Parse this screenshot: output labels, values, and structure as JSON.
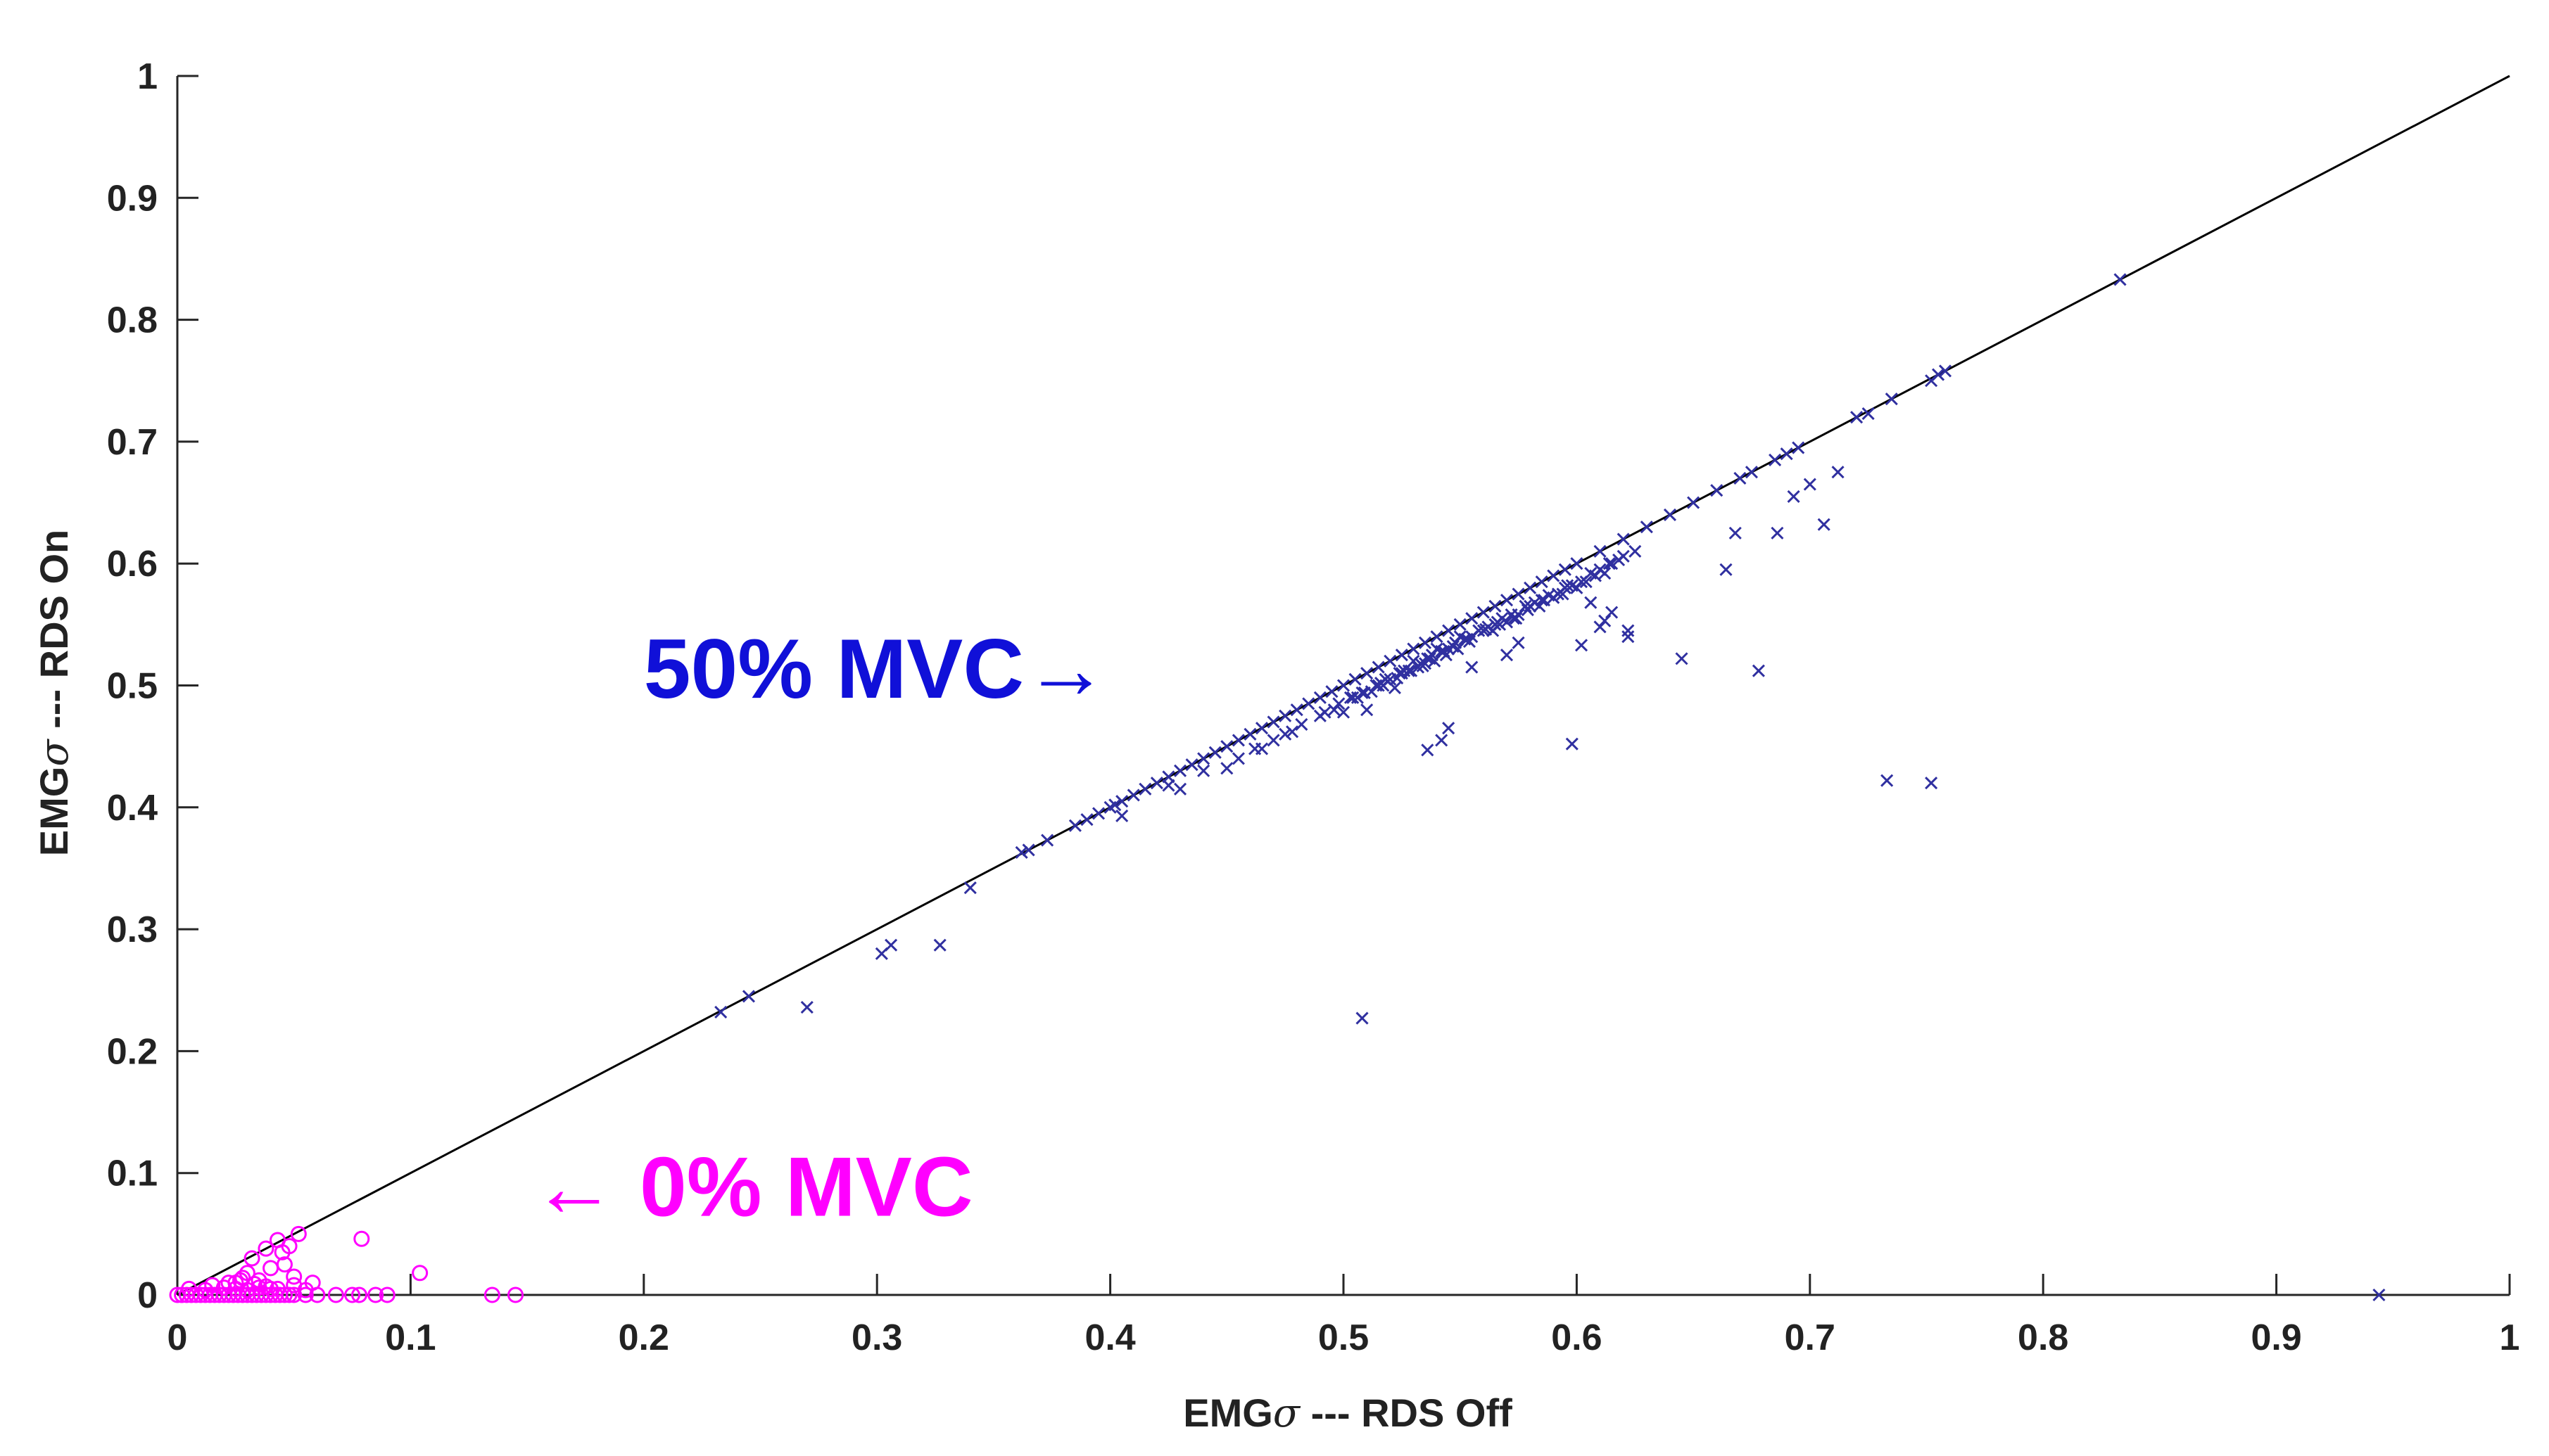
{
  "chart_data": {
    "type": "scatter",
    "title": "",
    "xlabel": {
      "prefix": "EMG",
      "symbol": "σ",
      "suffix": " --- RDS Off"
    },
    "ylabel": {
      "prefix": "EMG",
      "symbol": "σ",
      "suffix": " --- RDS On"
    },
    "xlim": [
      0,
      1
    ],
    "ylim": [
      0,
      1
    ],
    "grid": false,
    "legend": "none",
    "x_ticks": [
      0,
      0.1,
      0.2,
      0.3,
      0.4,
      0.5,
      0.6,
      0.7,
      0.8,
      0.9,
      1
    ],
    "x_tick_labels": [
      "0",
      "0.1",
      "0.2",
      "0.3",
      "0.4",
      "0.5",
      "0.6",
      "0.7",
      "0.8",
      "0.9",
      "1"
    ],
    "y_ticks": [
      0,
      0.1,
      0.2,
      0.3,
      0.4,
      0.5,
      0.6,
      0.7,
      0.8,
      0.9,
      1
    ],
    "y_tick_labels": [
      "0",
      "0.1",
      "0.2",
      "0.3",
      "0.4",
      "0.5",
      "0.6",
      "0.7",
      "0.8",
      "0.9",
      "1"
    ],
    "reference_line": {
      "name": "identity y = x",
      "x": [
        0,
        1
      ],
      "y": [
        0,
        1
      ],
      "color": "#000000"
    },
    "annotations": [
      {
        "text": "50% MVC→",
        "color": "#1010d8",
        "x": 0.2,
        "y": 0.49
      },
      {
        "text": "← 0% MVC",
        "color": "#ff00ff",
        "x": 0.152,
        "y": 0.065
      }
    ],
    "series": [
      {
        "name": "50% MVC",
        "marker": "x",
        "color": "#3030a0",
        "x": [
          0.233,
          0.245,
          0.27,
          0.302,
          0.306,
          0.327,
          0.34,
          0.362,
          0.365,
          0.373,
          0.385,
          0.39,
          0.395,
          0.4,
          0.402,
          0.405,
          0.41,
          0.415,
          0.42,
          0.425,
          0.43,
          0.435,
          0.44,
          0.445,
          0.45,
          0.455,
          0.46,
          0.465,
          0.47,
          0.475,
          0.48,
          0.485,
          0.49,
          0.495,
          0.5,
          0.505,
          0.51,
          0.515,
          0.52,
          0.525,
          0.53,
          0.535,
          0.54,
          0.545,
          0.55,
          0.555,
          0.56,
          0.565,
          0.57,
          0.575,
          0.58,
          0.585,
          0.59,
          0.595,
          0.6,
          0.61,
          0.62,
          0.63,
          0.64,
          0.65,
          0.66,
          0.67,
          0.675,
          0.685,
          0.69,
          0.695,
          0.72,
          0.725,
          0.735,
          0.752,
          0.755,
          0.758,
          0.833,
          0.944,
          0.405,
          0.425,
          0.44,
          0.455,
          0.462,
          0.47,
          0.478,
          0.482,
          0.49,
          0.496,
          0.5,
          0.504,
          0.51,
          0.512,
          0.515,
          0.52,
          0.522,
          0.525,
          0.528,
          0.53,
          0.532,
          0.535,
          0.538,
          0.54,
          0.545,
          0.548,
          0.55,
          0.555,
          0.558,
          0.562,
          0.565,
          0.568,
          0.57,
          0.575,
          0.578,
          0.582,
          0.585,
          0.59,
          0.595,
          0.598,
          0.602,
          0.61,
          0.615,
          0.618,
          0.625,
          0.43,
          0.45,
          0.465,
          0.475,
          0.492,
          0.506,
          0.514,
          0.518,
          0.524,
          0.536,
          0.542,
          0.552,
          0.56,
          0.566,
          0.572,
          0.58,
          0.588,
          0.596,
          0.606,
          0.614,
          0.62,
          0.498,
          0.503,
          0.508,
          0.516,
          0.526,
          0.533,
          0.537,
          0.543,
          0.547,
          0.553,
          0.561,
          0.567,
          0.573,
          0.579,
          0.586,
          0.592,
          0.509,
          0.517,
          0.523,
          0.529,
          0.534,
          0.539,
          0.544,
          0.549,
          0.554,
          0.564,
          0.574,
          0.584,
          0.594,
          0.604,
          0.612,
          0.608,
          0.508,
          0.536,
          0.542,
          0.545,
          0.555,
          0.57,
          0.575,
          0.598,
          0.602,
          0.606,
          0.61,
          0.612,
          0.615,
          0.622,
          0.645,
          0.664,
          0.668,
          0.678,
          0.686,
          0.693,
          0.7,
          0.706,
          0.712,
          0.733,
          0.752,
          0.6,
          0.622
        ],
        "y": [
          0.232,
          0.245,
          0.236,
          0.28,
          0.287,
          0.287,
          0.334,
          0.363,
          0.365,
          0.373,
          0.385,
          0.39,
          0.395,
          0.4,
          0.402,
          0.405,
          0.41,
          0.415,
          0.42,
          0.425,
          0.43,
          0.435,
          0.44,
          0.445,
          0.45,
          0.455,
          0.46,
          0.465,
          0.47,
          0.475,
          0.48,
          0.485,
          0.49,
          0.495,
          0.5,
          0.505,
          0.51,
          0.515,
          0.52,
          0.525,
          0.53,
          0.535,
          0.54,
          0.545,
          0.55,
          0.555,
          0.56,
          0.565,
          0.57,
          0.575,
          0.58,
          0.585,
          0.59,
          0.595,
          0.6,
          0.61,
          0.62,
          0.63,
          0.64,
          0.65,
          0.66,
          0.67,
          0.675,
          0.685,
          0.69,
          0.695,
          0.72,
          0.723,
          0.735,
          0.75,
          0.755,
          0.758,
          0.833,
          0,
          0.393,
          0.418,
          0.43,
          0.44,
          0.448,
          0.455,
          0.462,
          0.468,
          0.475,
          0.48,
          0.478,
          0.49,
          0.48,
          0.495,
          0.5,
          0.505,
          0.498,
          0.51,
          0.512,
          0.52,
          0.515,
          0.518,
          0.525,
          0.53,
          0.53,
          0.535,
          0.54,
          0.54,
          0.545,
          0.548,
          0.55,
          0.555,
          0.552,
          0.558,
          0.565,
          0.568,
          0.57,
          0.572,
          0.58,
          0.582,
          0.585,
          0.595,
          0.6,
          0.603,
          0.61,
          0.415,
          0.432,
          0.448,
          0.46,
          0.478,
          0.49,
          0.5,
          0.505,
          0.51,
          0.522,
          0.528,
          0.538,
          0.545,
          0.552,
          0.558,
          0.565,
          0.574,
          0.582,
          0.592,
          0.6,
          0.606,
          0.485,
          0.49,
          0.494,
          0.502,
          0.512,
          0.518,
          0.522,
          0.528,
          0.532,
          0.538,
          0.546,
          0.55,
          0.555,
          0.562,
          0.57,
          0.575,
          0.494,
          0.5,
          0.506,
          0.512,
          0.516,
          0.52,
          0.525,
          0.53,
          0.536,
          0.545,
          0.555,
          0.565,
          0.575,
          0.585,
          0.592,
          0.59,
          0.227,
          0.447,
          0.455,
          0.465,
          0.515,
          0.525,
          0.535,
          0.452,
          0.533,
          0.568,
          0.548,
          0.553,
          0.56,
          0.545,
          0.522,
          0.595,
          0.625,
          0.512,
          0.625,
          0.655,
          0.665,
          0.632,
          0.675,
          0.422,
          0.42,
          0.58,
          0.54
        ]
      },
      {
        "name": "0% MVC",
        "marker": "o",
        "color": "#ff00ff",
        "x": [
          0,
          0.002,
          0.004,
          0.006,
          0.008,
          0.01,
          0.012,
          0.014,
          0.016,
          0.018,
          0.02,
          0.022,
          0.024,
          0.026,
          0.028,
          0.03,
          0.032,
          0.034,
          0.036,
          0.038,
          0.04,
          0.042,
          0.044,
          0.046,
          0.048,
          0.05,
          0.055,
          0.06,
          0.068,
          0.075,
          0.078,
          0.085,
          0.09,
          0.135,
          0.145,
          0.005,
          0.012,
          0.02,
          0.025,
          0.03,
          0.035,
          0.04,
          0.015,
          0.022,
          0.027,
          0.033,
          0.038,
          0.043,
          0.05,
          0.055,
          0.045,
          0.048,
          0.052,
          0.058,
          0.038,
          0.043,
          0.032,
          0.104,
          0.079,
          0.05,
          0.046,
          0.04,
          0.035,
          0.03,
          0.028,
          0.025
        ],
        "y": [
          0,
          0,
          0,
          0,
          0,
          0,
          0,
          0,
          0,
          0,
          0,
          0,
          0,
          0,
          0,
          0,
          0,
          0,
          0,
          0,
          0,
          0,
          0,
          0,
          0,
          0,
          0,
          0,
          0,
          0,
          0,
          0,
          0,
          0,
          0,
          0.005,
          0.004,
          0.006,
          0.005,
          0.004,
          0.006,
          0.005,
          0.008,
          0.01,
          0.012,
          0.009,
          0.007,
          0.005,
          0.008,
          0.004,
          0.035,
          0.04,
          0.05,
          0.01,
          0.038,
          0.045,
          0.03,
          0.018,
          0.046,
          0.015,
          0.025,
          0.022,
          0.012,
          0.018,
          0.014,
          0.01
        ]
      }
    ]
  }
}
